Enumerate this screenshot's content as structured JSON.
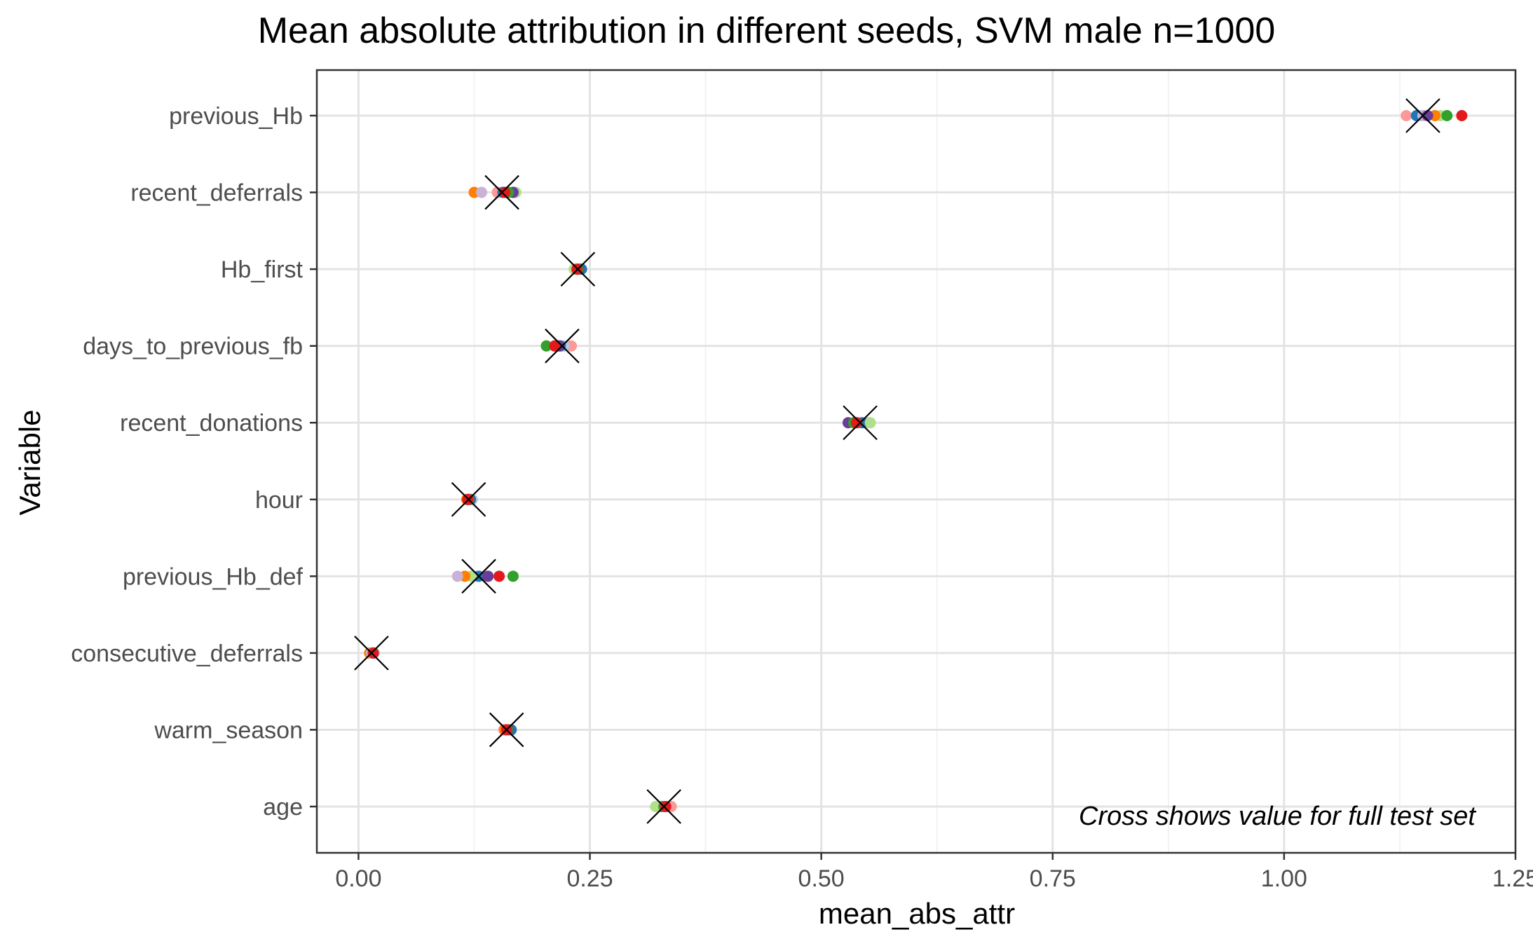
{
  "chart_data": {
    "type": "scatter",
    "title": "Mean absolute attribution in different seeds, SVM male n=1000",
    "xlabel": "mean_abs_attr",
    "ylabel": "Variable",
    "xlim": [
      -0.045,
      1.25
    ],
    "x_ticks": [
      "0.00",
      "0.25",
      "0.50",
      "0.75",
      "1.00",
      "1.25"
    ],
    "grid": true,
    "annotation": "Cross shows value for full test set",
    "categories": [
      "previous_Hb",
      "recent_deferrals",
      "Hb_first",
      "days_to_previous_fb",
      "recent_donations",
      "hour",
      "previous_Hb_def",
      "consecutive_deferrals",
      "warm_season",
      "age"
    ],
    "seed_colors": [
      "#fb9a99",
      "#a6cee3",
      "#1f78b4",
      "#b2df8a",
      "#ff7f00",
      "#cab2d6",
      "#6a3d9a",
      "#33a02c",
      "#e31a1c"
    ],
    "points": [
      {
        "variable": "previous_Hb",
        "values": [
          1.132,
          1.147,
          1.143,
          1.169,
          1.163,
          1.15,
          1.155,
          1.176,
          1.192
        ],
        "cross": 1.15
      },
      {
        "variable": "recent_deferrals",
        "values": [
          0.15,
          0.162,
          0.156,
          0.17,
          0.125,
          0.133,
          0.167,
          0.162,
          0.158
        ],
        "cross": 0.155
      },
      {
        "variable": "Hb_first",
        "values": [
          0.235,
          0.24,
          0.241,
          0.233,
          0.237,
          0.236,
          0.238,
          0.237,
          0.236
        ],
        "cross": 0.237
      },
      {
        "variable": "days_to_previous_fb",
        "values": [
          0.23,
          0.222,
          0.218,
          0.215,
          0.212,
          0.216,
          0.217,
          0.203,
          0.212
        ],
        "cross": 0.22
      },
      {
        "variable": "recent_donations",
        "values": [
          0.54,
          0.55,
          0.544,
          0.553,
          0.536,
          0.538,
          0.529,
          0.535,
          0.538
        ],
        "cross": 0.542
      },
      {
        "variable": "hour",
        "values": [
          0.118,
          0.123,
          0.121,
          0.12,
          0.117,
          0.119,
          0.12,
          0.119,
          0.118
        ],
        "cross": 0.119
      },
      {
        "variable": "previous_Hb_def",
        "values": [
          0.137,
          0.128,
          0.13,
          0.122,
          0.115,
          0.107,
          0.14,
          0.167,
          0.152
        ],
        "cross": 0.13
      },
      {
        "variable": "consecutive_deferrals",
        "values": [
          0.013,
          0.017,
          0.015,
          0.015,
          0.012,
          0.014,
          0.016,
          0.016,
          0.016
        ],
        "cross": 0.014
      },
      {
        "variable": "warm_season",
        "values": [
          0.157,
          0.162,
          0.165,
          0.16,
          0.158,
          0.16,
          0.162,
          0.161,
          0.16
        ],
        "cross": 0.16
      },
      {
        "variable": "age",
        "values": [
          0.338,
          0.33,
          0.328,
          0.321,
          0.33,
          0.331,
          0.331,
          0.33,
          0.332
        ],
        "cross": 0.33
      }
    ]
  }
}
